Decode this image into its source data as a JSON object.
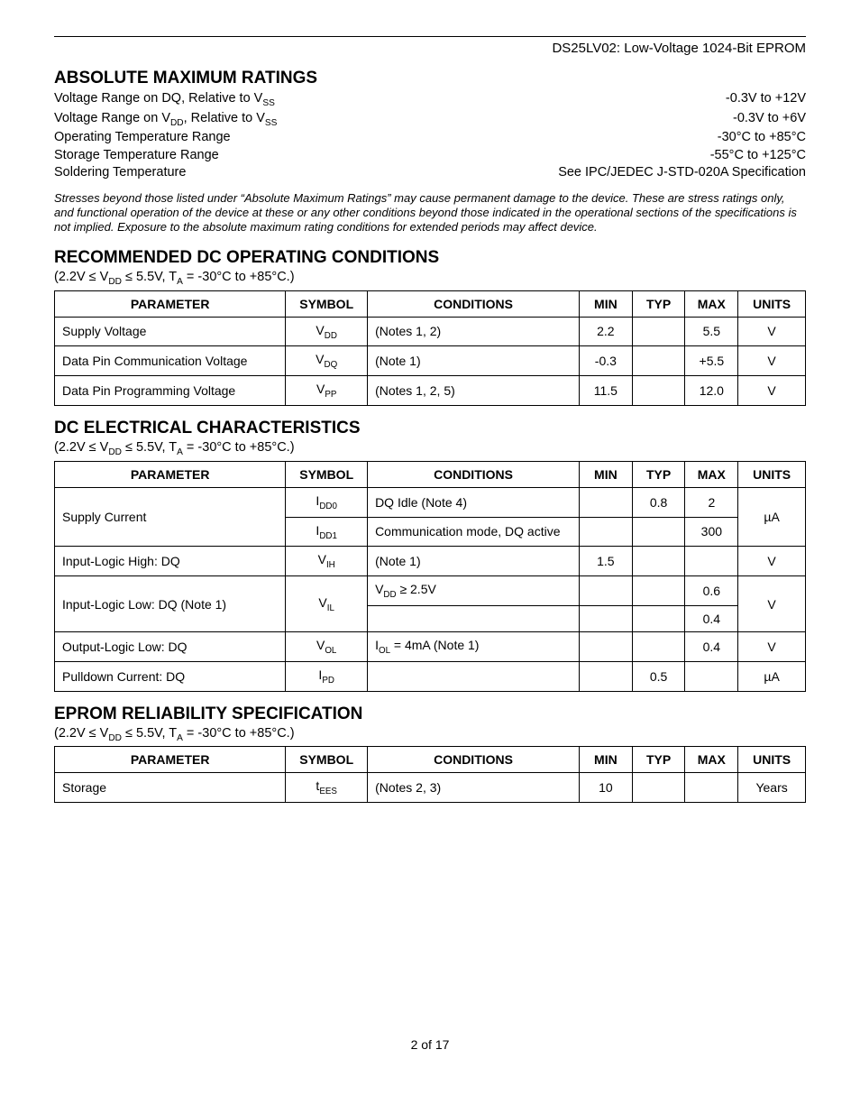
{
  "header": {
    "title": "DS25LV02: Low-Voltage 1024-Bit EPROM"
  },
  "amr": {
    "heading": "ABSOLUTE MAXIMUM RATINGS",
    "rows": [
      {
        "label_html": "Voltage Range on DQ, Relative to V<sub>SS</sub>",
        "value": "-0.3V to +12V"
      },
      {
        "label_html": "Voltage Range on V<sub>DD</sub>, Relative to V<sub>SS</sub>",
        "value": "-0.3V to +6V"
      },
      {
        "label_html": "Operating Temperature Range",
        "value": "-30°C to +85°C"
      },
      {
        "label_html": "Storage Temperature Range",
        "value": "-55°C to +125°C"
      },
      {
        "label_html": "Soldering Temperature",
        "value": "See IPC/JEDEC J-STD-020A Specification"
      }
    ],
    "note": "Stresses beyond those listed under “Absolute Maximum Ratings” may cause permanent damage to the device. These are stress ratings only, and functional operation of the device at these or any other conditions beyond those indicated in the operational sections of the specifications is not implied. Exposure to the absolute maximum rating conditions for extended periods may affect device."
  },
  "columns": {
    "parameter": "PARAMETER",
    "symbol": "SYMBOL",
    "conditions": "CONDITIONS",
    "min": "MIN",
    "typ": "TYP",
    "max": "MAX",
    "units": "UNITS"
  },
  "dc_op": {
    "heading": "RECOMMENDED DC OPERATING CONDITIONS",
    "cond_html": "(2.2V ≤ V<sub>DD</sub> ≤ 5.5V, T<sub>A</sub> = -30°C to +85°C.)",
    "rows": [
      {
        "param": "Supply Voltage",
        "symbol_html": "V<sub>DD</sub>",
        "cond": "(Notes 1, 2)",
        "min": "2.2",
        "typ": "",
        "max": "5.5",
        "units": "V"
      },
      {
        "param": "Data Pin Communication Voltage",
        "symbol_html": "V<sub>DQ</sub>",
        "cond": "(Note 1)",
        "min": "-0.3",
        "typ": "",
        "max": "+5.5",
        "units": "V"
      },
      {
        "param": "Data Pin Programming Voltage",
        "symbol_html": "V<sub>PP</sub>",
        "cond": "(Notes 1, 2, 5)",
        "min": "11.5",
        "typ": "",
        "max": "12.0",
        "units": "V"
      }
    ]
  },
  "dc_elec": {
    "heading": "DC ELECTRICAL CHARACTERISTICS",
    "cond_html": "(2.2V ≤ V<sub>DD</sub> ≤ 5.5V, T<sub>A</sub> = -30°C to +85°C.)",
    "rows": [
      {
        "param": "Supply Current",
        "param_rowspan": 2,
        "symbol_html": "I<sub>DD0</sub>",
        "cond": "DQ Idle (Note 4)",
        "min": "",
        "typ": "0.8",
        "max": "2",
        "units": "µA",
        "units_rowspan": 2
      },
      {
        "param": null,
        "symbol_html": "I<sub>DD1</sub>",
        "cond": "Communication mode, DQ active",
        "min": "",
        "typ": "",
        "max": "300",
        "units": null
      },
      {
        "param": "Input-Logic High: DQ",
        "symbol_html": "V<sub>IH</sub>",
        "cond": "(Note 1)",
        "min": "1.5",
        "typ": "",
        "max": "",
        "units": "V"
      },
      {
        "param": "Input-Logic Low: DQ (Note 1)",
        "param_rowspan": 2,
        "symbol_html": "V<sub>IL</sub>",
        "symbol_rowspan": 2,
        "cond_html": "V<sub>DD</sub> ≥ 2.5V",
        "min": "",
        "typ": "",
        "max": "0.6",
        "units": "V",
        "units_rowspan": 2
      },
      {
        "param": null,
        "symbol_html": null,
        "cond": "",
        "min": "",
        "typ": "",
        "max": "0.4",
        "units": null
      },
      {
        "param": "Output-Logic Low: DQ",
        "symbol_html": "V<sub>OL</sub>",
        "cond_html": "I<sub>OL</sub> = 4mA (Note 1)",
        "min": "",
        "typ": "",
        "max": "0.4",
        "units": "V"
      },
      {
        "param": "Pulldown Current: DQ",
        "symbol_html": "I<sub>PD</sub>",
        "cond": "",
        "min": "",
        "typ": "0.5",
        "max": "",
        "units": "µA"
      }
    ]
  },
  "eprom": {
    "heading": "EPROM RELIABILITY SPECIFICATION",
    "cond_html": "(2.2V ≤ V<sub>DD</sub> ≤ 5.5V, T<sub>A</sub> = -30°C to +85°C.)",
    "rows": [
      {
        "param": "Storage",
        "symbol_html": "t<sub>EES</sub>",
        "cond": "(Notes 2, 3)",
        "min": "10",
        "typ": "",
        "max": "",
        "units": "Years"
      }
    ]
  },
  "footer": {
    "page": "2 of 17"
  }
}
